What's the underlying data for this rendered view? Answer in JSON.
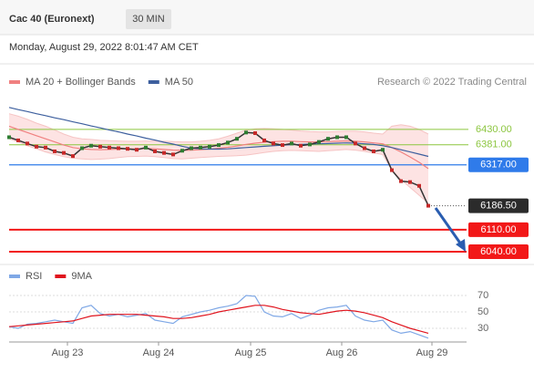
{
  "header": {
    "title": "Cac 40 (Euronext)",
    "interval": "30 MIN",
    "date": "Monday, August 29, 2022 8:01:47 AM CET",
    "credit": "Research © 2022 Trading Central"
  },
  "chart_data": [
    {
      "type": "line",
      "x": [
        0,
        1,
        2,
        3,
        4,
        5,
        6,
        7,
        8,
        9,
        10,
        11,
        12,
        13,
        14,
        15,
        16,
        17,
        18,
        19,
        20,
        21,
        22,
        23,
        24,
        25,
        26,
        27,
        28,
        29,
        30,
        31,
        32,
        33,
        34,
        35,
        36,
        37,
        38,
        39,
        40,
        41,
        42,
        43,
        44,
        45,
        46
      ],
      "xlim": [
        0,
        50
      ],
      "ylim": [
        6005,
        6610
      ],
      "price": {
        "color": "#333333",
        "values": [
          6405,
          6395,
          6385,
          6375,
          6372,
          6360,
          6355,
          6345,
          6370,
          6378,
          6375,
          6372,
          6370,
          6368,
          6365,
          6372,
          6360,
          6355,
          6350,
          6362,
          6370,
          6372,
          6375,
          6380,
          6388,
          6400,
          6420,
          6418,
          6395,
          6385,
          6380,
          6385,
          6378,
          6382,
          6390,
          6400,
          6405,
          6405,
          6385,
          6370,
          6360,
          6365,
          6300,
          6265,
          6262,
          6250,
          6186.5
        ]
      },
      "series": [
        {
          "name": "MA 20 + Bollinger Bands",
          "color": "#f08080",
          "band_color": "#fde3e3",
          "values": [
            6440,
            6430,
            6420,
            6410,
            6400,
            6390,
            6380,
            6372,
            6368,
            6366,
            6365,
            6366,
            6367,
            6368,
            6368,
            6369,
            6368,
            6366,
            6364,
            6363,
            6364,
            6365,
            6367,
            6370,
            6373,
            6377,
            6382,
            6386,
            6389,
            6391,
            6392,
            6392,
            6391,
            6390,
            6390,
            6391,
            6392,
            6393,
            6392,
            6390,
            6387,
            6384,
            6372,
            6358,
            6342,
            6325,
            6305
          ],
          "upper": [
            6480,
            6472,
            6462,
            6450,
            6440,
            6428,
            6415,
            6405,
            6400,
            6398,
            6395,
            6394,
            6393,
            6392,
            6392,
            6393,
            6393,
            6392,
            6391,
            6390,
            6390,
            6392,
            6395,
            6400,
            6408,
            6418,
            6428,
            6432,
            6433,
            6432,
            6430,
            6428,
            6425,
            6423,
            6422,
            6422,
            6423,
            6424,
            6424,
            6422,
            6418,
            6415,
            6440,
            6445,
            6440,
            6430,
            6415
          ],
          "lower": [
            6400,
            6390,
            6378,
            6368,
            6358,
            6350,
            6343,
            6338,
            6336,
            6334,
            6335,
            6337,
            6340,
            6343,
            6344,
            6345,
            6343,
            6340,
            6337,
            6336,
            6338,
            6340,
            6342,
            6344,
            6345,
            6346,
            6348,
            6352,
            6356,
            6360,
            6362,
            6363,
            6362,
            6361,
            6360,
            6362,
            6364,
            6366,
            6364,
            6360,
            6355,
            6350,
            6300,
            6270,
            6245,
            6220,
            6195
          ]
        },
        {
          "name": "MA 50",
          "color": "#3d5f9e",
          "values": [
            6500,
            6493,
            6487,
            6480,
            6474,
            6467,
            6461,
            6454,
            6448,
            6441,
            6435,
            6428,
            6422,
            6415,
            6409,
            6402,
            6396,
            6389,
            6383,
            6376,
            6370,
            6368,
            6367,
            6367,
            6368,
            6370,
            6372,
            6374,
            6376,
            6378,
            6380,
            6381,
            6382,
            6383,
            6384,
            6385,
            6386,
            6387,
            6386,
            6384,
            6382,
            6378,
            6372,
            6365,
            6358,
            6351,
            6344
          ]
        }
      ],
      "levels": [
        {
          "value": 6430,
          "label": "6430.00",
          "color": "#8cc63f",
          "style": "text"
        },
        {
          "value": 6381,
          "label": "6381.00",
          "color": "#8cc63f",
          "style": "text"
        },
        {
          "value": 6317,
          "label": "6317.00",
          "color": "#2f7bea",
          "style": "box"
        },
        {
          "value": 6186.5,
          "label": "6186.50",
          "color": "#2b2b2b",
          "style": "current"
        },
        {
          "value": 6110,
          "label": "6110.00",
          "color": "#f21818",
          "style": "box"
        },
        {
          "value": 6040,
          "label": "6040.00",
          "color": "#f21818",
          "style": "box"
        }
      ]
    },
    {
      "type": "line",
      "x": [
        0,
        1,
        2,
        3,
        4,
        5,
        6,
        7,
        8,
        9,
        10,
        11,
        12,
        13,
        14,
        15,
        16,
        17,
        18,
        19,
        20,
        21,
        22,
        23,
        24,
        25,
        26,
        27,
        28,
        29,
        30,
        31,
        32,
        33,
        34,
        35,
        36,
        37,
        38,
        39,
        40,
        41,
        42,
        43,
        44,
        45,
        46
      ],
      "xlim": [
        0,
        50
      ],
      "ylim": [
        15,
        80
      ],
      "yticks": [
        70,
        50,
        30
      ],
      "xticks": [
        {
          "value": 6.4,
          "label": "Aug 23"
        },
        {
          "value": 16.4,
          "label": "Aug 24"
        },
        {
          "value": 26.5,
          "label": "Aug 25"
        },
        {
          "value": 36.5,
          "label": "Aug 26"
        },
        {
          "value": 46.4,
          "label": "Aug 29"
        }
      ],
      "series": [
        {
          "name": "RSI",
          "color": "#7fa8e6",
          "values": [
            32,
            30,
            35,
            36,
            38,
            40,
            38,
            36,
            55,
            58,
            48,
            45,
            47,
            44,
            46,
            48,
            40,
            38,
            36,
            44,
            47,
            50,
            52,
            55,
            57,
            60,
            70,
            69,
            50,
            45,
            44,
            48,
            42,
            46,
            52,
            55,
            56,
            58,
            45,
            40,
            38,
            40,
            28,
            24,
            26,
            22,
            18
          ]
        },
        {
          "name": "9MA",
          "color": "#e0141e",
          "values": [
            32,
            33,
            34,
            35,
            36,
            37,
            38,
            39,
            42,
            45,
            46,
            47,
            47,
            47,
            47,
            46,
            45,
            44,
            42,
            42,
            43,
            45,
            47,
            50,
            52,
            54,
            56,
            58,
            58,
            56,
            53,
            51,
            49,
            48,
            47,
            49,
            51,
            52,
            51,
            49,
            46,
            43,
            38,
            34,
            30,
            27,
            24
          ]
        }
      ]
    }
  ]
}
